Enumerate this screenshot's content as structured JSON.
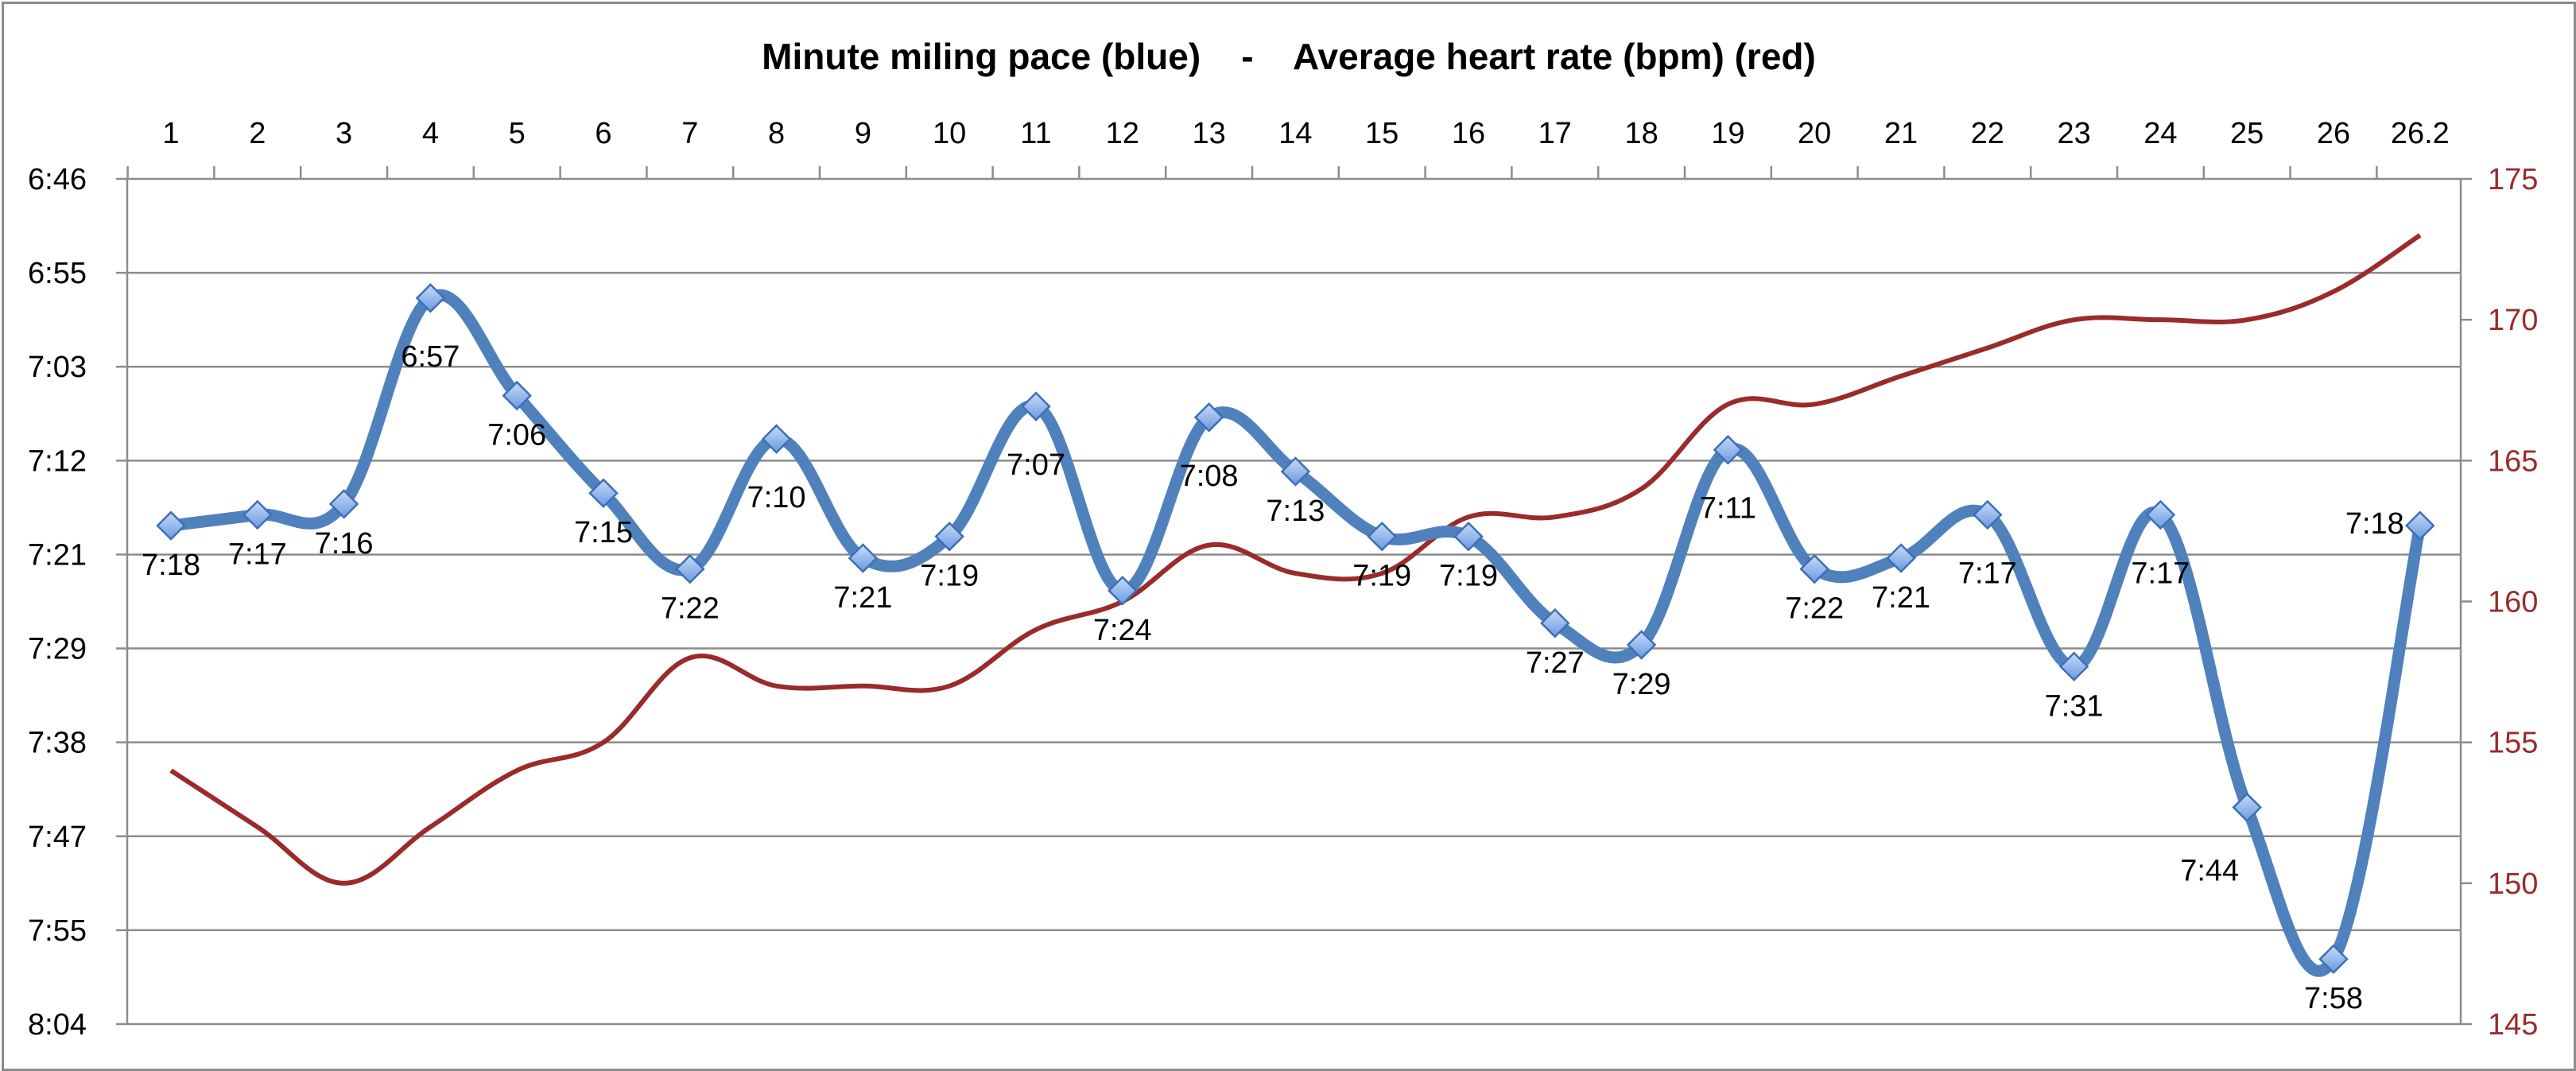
{
  "chart_data": {
    "type": "line",
    "title": "Minute miling pace (blue)    -    Average heart rate (bpm) (red)",
    "categories": [
      "1",
      "2",
      "3",
      "4",
      "5",
      "6",
      "7",
      "8",
      "9",
      "10",
      "11",
      "12",
      "13",
      "14",
      "15",
      "16",
      "17",
      "18",
      "19",
      "20",
      "21",
      "22",
      "23",
      "24",
      "25",
      "26",
      "26.2"
    ],
    "x_axis_position": "top",
    "grid": "horizontal",
    "left_axis": {
      "ticks": [
        "6:46",
        "6:55",
        "7:03",
        "7:12",
        "7:21",
        "7:29",
        "7:38",
        "7:47",
        "7:55",
        "8:04"
      ],
      "range_seconds": [
        406,
        484
      ],
      "inverted": true
    },
    "right_axis": {
      "ticks": [
        "175",
        "170",
        "165",
        "160",
        "155",
        "150",
        "145"
      ],
      "range": [
        145,
        175
      ]
    },
    "series": [
      {
        "name": "Minute miling pace (blue)",
        "axis": "left",
        "color": "#4f81bd",
        "marker": "diamond",
        "labels": [
          "7:18",
          "7:17",
          "7:16",
          "6:57",
          "7:06",
          "7:15",
          "7:22",
          "7:10",
          "7:21",
          "7:19",
          "7:07",
          "7:24",
          "7:08",
          "7:13",
          "7:19",
          "7:19",
          "7:27",
          "7:29",
          "7:11",
          "7:22",
          "7:21",
          "7:17",
          "7:31",
          "7:17",
          "7:44",
          "7:58",
          "7:18"
        ],
        "values_seconds": [
          438,
          437,
          436,
          417,
          426,
          435,
          442,
          430,
          441,
          439,
          427,
          444,
          428,
          433,
          439,
          439,
          447,
          449,
          431,
          442,
          441,
          437,
          451,
          437,
          464,
          478,
          438
        ]
      },
      {
        "name": "Average heart rate (bpm) (red)",
        "axis": "right",
        "color": "#9b2b2b",
        "values": [
          154,
          152,
          150,
          152,
          154,
          155,
          158,
          157,
          157,
          157,
          159,
          160,
          162,
          161,
          161,
          163,
          163,
          164,
          167,
          167,
          168,
          169,
          170,
          170,
          170,
          171,
          173
        ]
      }
    ]
  }
}
